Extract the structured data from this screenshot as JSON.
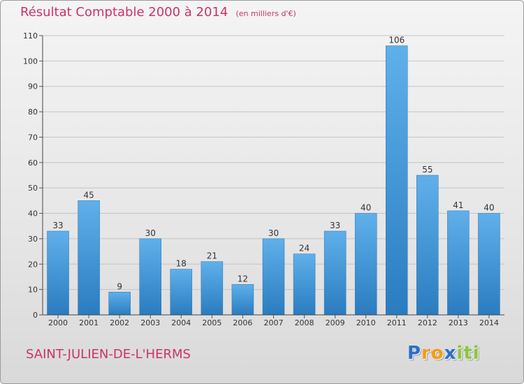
{
  "chart_data": {
    "type": "bar",
    "title": "Résultat Comptable 2000 à 2014",
    "units_label": "(en milliers d'€)",
    "categories": [
      "2000",
      "2001",
      "2002",
      "2003",
      "2004",
      "2005",
      "2006",
      "2007",
      "2008",
      "2009",
      "2010",
      "2011",
      "2012",
      "2013",
      "2014"
    ],
    "values": [
      33,
      45,
      9,
      30,
      18,
      21,
      12,
      30,
      24,
      33,
      40,
      106,
      55,
      41,
      40
    ],
    "ylim": [
      0,
      110
    ],
    "yticks": [
      0,
      10,
      20,
      30,
      40,
      50,
      60,
      70,
      80,
      90,
      100,
      110
    ],
    "xlabel": "",
    "ylabel": "",
    "grid": true,
    "bar_color": "#3a8fd6"
  },
  "commune": "SAINT-JULIEN-DE-L'HERMS",
  "logo": {
    "letters": [
      "P",
      "r",
      "o",
      "x",
      "i",
      "t",
      "i"
    ],
    "colors": [
      "#2a6fc9",
      "#f39c12",
      "#f39c12",
      "#2a6fc9",
      "#8cc63f",
      "#8cc63f",
      "#8cc63f"
    ]
  }
}
